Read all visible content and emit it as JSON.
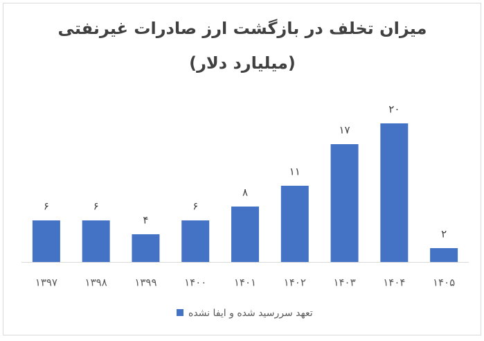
{
  "chart_data": {
    "type": "bar",
    "title": "میزان تخلف در بازگشت ارز صادرات غیرنفتی",
    "subtitle": "(میلیارد دلار)",
    "categories": [
      "۱۳۹۷",
      "۱۳۹۸",
      "۱۳۹۹",
      "۱۴۰۰",
      "۱۴۰۱",
      "۱۴۰۲",
      "۱۴۰۳",
      "۱۴۰۴",
      "۱۴۰۵"
    ],
    "series": [
      {
        "name": "تعهد سررسید شده و ایفا نشده",
        "color": "#4472c4",
        "values": [
          6,
          6,
          4,
          6,
          8,
          11,
          17,
          20,
          2
        ],
        "value_labels": [
          "۶",
          "۶",
          "۴",
          "۶",
          "۸",
          "۱۱",
          "۱۷",
          "۲۰",
          "۲"
        ]
      }
    ],
    "legend": "bottom"
  }
}
